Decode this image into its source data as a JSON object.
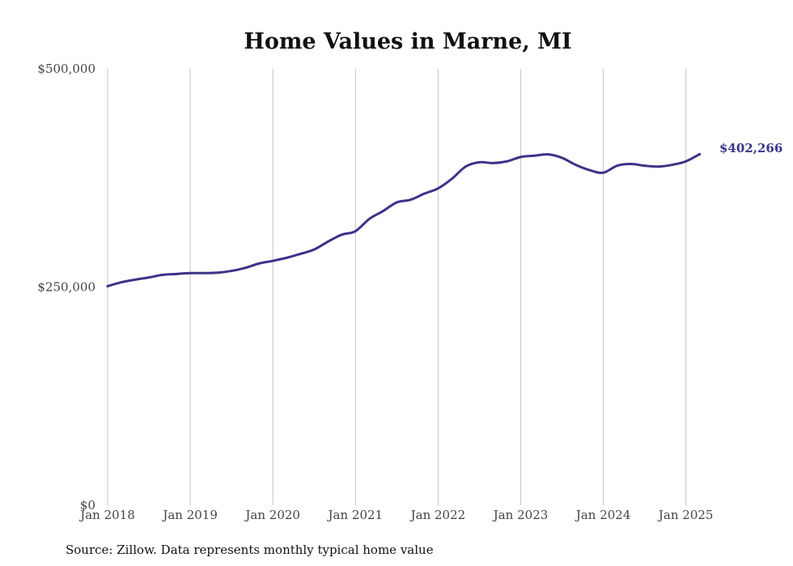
{
  "chart_data": {
    "type": "line",
    "title": "Home Values in Marne, MI",
    "xlabel": "",
    "ylabel": "",
    "ylim": [
      0,
      500000
    ],
    "yticks": [
      0,
      250000,
      500000
    ],
    "ytick_labels": [
      "$0",
      "$250,000",
      "$500,000"
    ],
    "xticks": [
      "2018-01",
      "2019-01",
      "2020-01",
      "2021-01",
      "2022-01",
      "2023-01",
      "2024-01",
      "2025-01"
    ],
    "xtick_labels": [
      "Jan 2018",
      "Jan 2019",
      "Jan 2020",
      "Jan 2021",
      "Jan 2022",
      "Jan 2023",
      "Jan 2024",
      "Jan 2025"
    ],
    "grid": "vertical",
    "line_color": "#3b3488",
    "end_label": "$402,266",
    "source": "Source: Zillow. Data represents monthly typical home value",
    "series": [
      {
        "x": [
          "2018-01",
          "2018-03",
          "2018-05",
          "2018-07",
          "2018-09",
          "2018-11",
          "2019-01",
          "2019-03",
          "2019-05",
          "2019-07",
          "2019-09",
          "2019-11",
          "2020-01",
          "2020-03",
          "2020-05",
          "2020-07",
          "2020-09",
          "2020-11",
          "2021-01",
          "2021-03",
          "2021-05",
          "2021-07",
          "2021-09",
          "2021-11",
          "2022-01",
          "2022-03",
          "2022-05",
          "2022-07",
          "2022-09",
          "2022-11",
          "2023-01",
          "2023-03",
          "2023-05",
          "2023-07",
          "2023-09",
          "2023-11",
          "2024-01",
          "2024-03",
          "2024-05",
          "2024-07",
          "2024-09",
          "2024-11",
          "2025-01",
          "2025-03"
        ],
        "values": [
          251000,
          255500,
          258500,
          261000,
          264000,
          265000,
          266000,
          266000,
          266500,
          268500,
          272000,
          277000,
          280000,
          283500,
          288000,
          293000,
          302000,
          310000,
          314000,
          328000,
          337000,
          347000,
          350000,
          357000,
          363000,
          374000,
          388000,
          393000,
          392000,
          394000,
          399000,
          400500,
          402000,
          398000,
          390000,
          384000,
          381000,
          389000,
          391000,
          389000,
          388000,
          390000,
          394000,
          402266
        ]
      }
    ]
  }
}
